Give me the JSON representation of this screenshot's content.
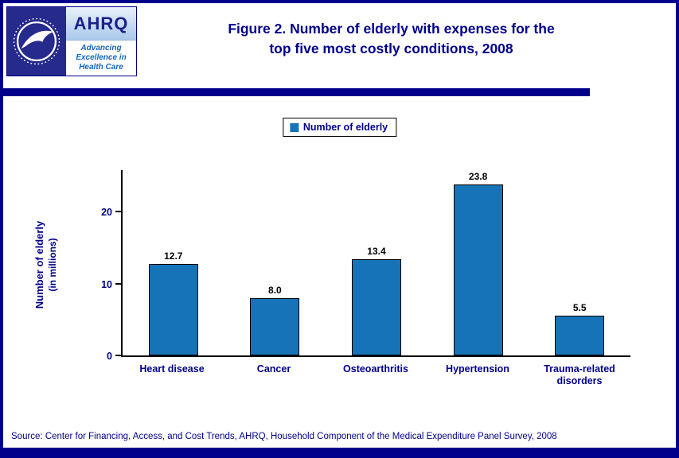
{
  "header": {
    "title_line1": "Figure 2. Number of elderly with expenses for the",
    "title_line2": "top five most costly conditions, 2008"
  },
  "logos": {
    "ahrq": {
      "name": "AHRQ",
      "tagline1": "Advancing",
      "tagline2": "Excellence in",
      "tagline3": "Health Care"
    }
  },
  "legend": {
    "label": "Number of elderly"
  },
  "chart_data": {
    "type": "bar",
    "title": "Figure 2. Number of elderly with expenses for the top five most costly conditions, 2008",
    "categories": [
      "Heart disease",
      "Cancer",
      "Osteoarthritis",
      "Hypertension",
      "Trauma-related disorders"
    ],
    "values": [
      12.7,
      8.0,
      13.4,
      23.8,
      5.5
    ],
    "series_name": "Number of elderly",
    "ylabel_line1": "Number of elderly",
    "ylabel_line2": "(in millions)",
    "yticks": [
      0,
      10,
      20
    ],
    "ylim": [
      0,
      26
    ],
    "grid": false,
    "legend_position": "top",
    "bar_color": "#1673B8"
  },
  "footer": {
    "source": "Source: Center for Financing, Access, and Cost Trends, AHRQ, Household Component of the Medical Expenditure Panel Survey, 2008"
  },
  "colors": {
    "navy": "#00008B",
    "bar_fill": "#1673B8",
    "axis": "#000000"
  }
}
